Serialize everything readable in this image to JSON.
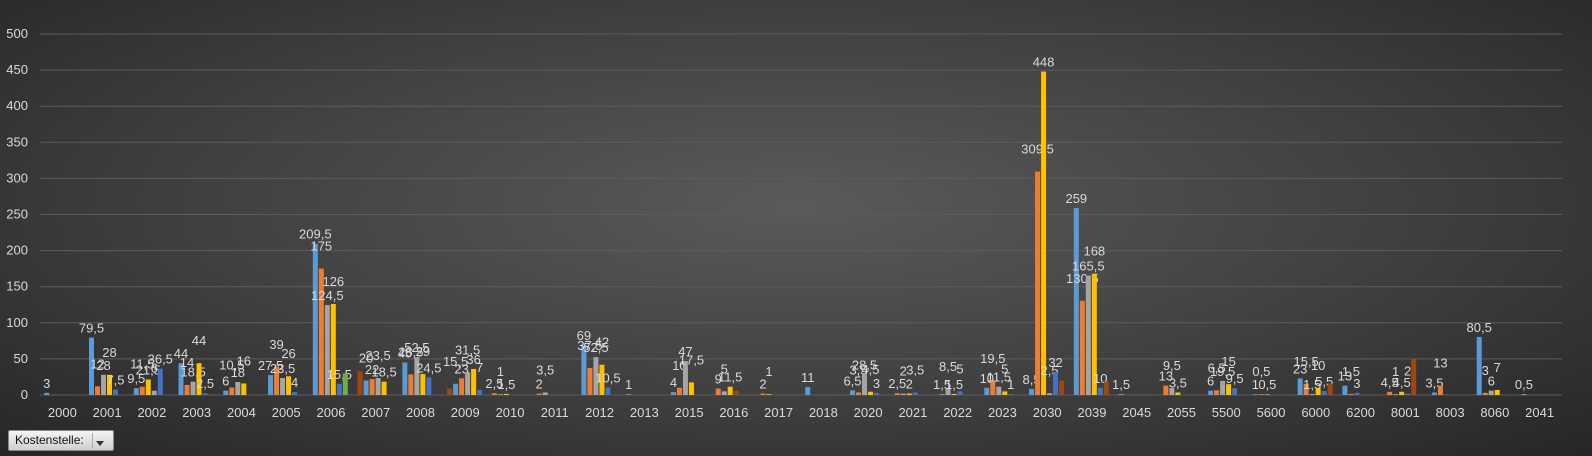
{
  "filter": {
    "label": "Kostenstelle:"
  },
  "chart_data": {
    "type": "bar",
    "ylim": [
      0,
      500
    ],
    "yticks": [
      0,
      50,
      100,
      150,
      200,
      250,
      300,
      350,
      400,
      450,
      500
    ],
    "grid": true,
    "colors": [
      "#5b9bd5",
      "#ed7d31",
      "#a5a5a5",
      "#ffc000",
      "#4472c4",
      "#70ad47",
      "#264478",
      "#9e480e"
    ],
    "categories": [
      {
        "label": "2000",
        "bars": [
          [
            0,
            3,
            "3"
          ]
        ]
      },
      {
        "label": "2001",
        "bars": [
          [
            0,
            79.5,
            "79,5"
          ],
          [
            1,
            12,
            "12"
          ],
          [
            2,
            28,
            "28"
          ],
          [
            3,
            28,
            "28"
          ],
          [
            4,
            7.5,
            "7,5"
          ]
        ]
      },
      {
        "label": "2002",
        "bars": [
          [
            0,
            9.5,
            "9,5"
          ],
          [
            1,
            11.5,
            "11,5"
          ],
          [
            3,
            21.5,
            "21,5"
          ],
          [
            2,
            6,
            "6"
          ],
          [
            4,
            36.5,
            "36,5"
          ]
        ]
      },
      {
        "label": "2003",
        "bars": [
          [
            0,
            44,
            "44"
          ],
          [
            1,
            14,
            "14"
          ],
          [
            2,
            18.5,
            "18,5"
          ],
          [
            3,
            44,
            "44"
          ],
          [
            4,
            2.5,
            "2,5"
          ],
          [
            7,
            0.5,
            ""
          ]
        ]
      },
      {
        "label": "2004",
        "bars": [
          [
            0,
            6,
            "6"
          ],
          [
            1,
            10.5,
            "10,5"
          ],
          [
            2,
            18,
            "18"
          ],
          [
            3,
            16,
            "16"
          ]
        ]
      },
      {
        "label": "2005",
        "bars": [
          [
            0,
            27.5,
            "27,5"
          ],
          [
            1,
            39,
            "39"
          ],
          [
            2,
            23.5,
            "23,5"
          ],
          [
            3,
            26,
            "26"
          ],
          [
            4,
            4,
            "4"
          ]
        ]
      },
      {
        "label": "2006",
        "bars": [
          [
            0,
            209.5,
            "209,5"
          ],
          [
            1,
            175,
            "175"
          ],
          [
            2,
            124.5,
            "124,5"
          ],
          [
            3,
            126,
            "126"
          ],
          [
            4,
            15.5,
            "15,5"
          ],
          [
            5,
            30,
            ""
          ]
        ]
      },
      {
        "label": "2007",
        "bars": [
          [
            7,
            33,
            ""
          ],
          [
            0,
            20,
            "20"
          ],
          [
            1,
            22,
            "22"
          ],
          [
            2,
            23.5,
            "23,5"
          ],
          [
            3,
            18.5,
            "18,5"
          ]
        ]
      },
      {
        "label": "2008",
        "bars": [
          [
            0,
            45,
            "45"
          ],
          [
            1,
            28.5,
            "28,5"
          ],
          [
            2,
            52.5,
            "52,5"
          ],
          [
            3,
            29,
            "29"
          ],
          [
            4,
            24.5,
            "24,5"
          ]
        ]
      },
      {
        "label": "2009",
        "bars": [
          [
            7,
            9,
            ""
          ],
          [
            0,
            15.5,
            "15,5"
          ],
          [
            1,
            23,
            "23"
          ],
          [
            2,
            31.5,
            "31,5"
          ],
          [
            3,
            36,
            "36"
          ],
          [
            4,
            7,
            "7"
          ]
        ]
      },
      {
        "label": "2010",
        "bars": [
          [
            1,
            2.5,
            "2,5"
          ],
          [
            2,
            1,
            "1"
          ],
          [
            3,
            1.5,
            "1,5"
          ]
        ]
      },
      {
        "label": "2011",
        "bars": [
          [
            1,
            2,
            "2"
          ],
          [
            2,
            3.5,
            "3,5"
          ]
        ]
      },
      {
        "label": "2012",
        "bars": [
          [
            0,
            69,
            "69"
          ],
          [
            1,
            37.5,
            "37,5"
          ],
          [
            2,
            52.5,
            "52,5"
          ],
          [
            3,
            42,
            "42"
          ],
          [
            4,
            10.5,
            "10,5"
          ]
        ]
      },
      {
        "label": "2013",
        "bars": [
          [
            1,
            1,
            "1"
          ]
        ]
      },
      {
        "label": "2015",
        "bars": [
          [
            0,
            4,
            "4"
          ],
          [
            1,
            10,
            "10"
          ],
          [
            2,
            47,
            "47"
          ],
          [
            3,
            17.5,
            "17,5"
          ]
        ]
      },
      {
        "label": "2016",
        "bars": [
          [
            1,
            9,
            "9"
          ],
          [
            2,
            5,
            "5"
          ],
          [
            3,
            11.5,
            "11,5"
          ],
          [
            7,
            6,
            ""
          ]
        ]
      },
      {
        "label": "2017",
        "bars": [
          [
            1,
            2,
            "2"
          ],
          [
            3,
            1,
            "1"
          ]
        ]
      },
      {
        "label": "2018",
        "bars": [
          [
            0,
            11,
            "11"
          ]
        ]
      },
      {
        "label": "2020",
        "bars": [
          [
            0,
            6.5,
            "6,5"
          ],
          [
            1,
            3.5,
            "3,5"
          ],
          [
            2,
            28.5,
            "28,5"
          ],
          [
            3,
            4.5,
            "4,5"
          ],
          [
            4,
            3,
            "3"
          ]
        ]
      },
      {
        "label": "2021",
        "bars": [
          [
            1,
            2.5,
            "2,5"
          ],
          [
            2,
            2,
            "2"
          ],
          [
            3,
            2,
            "2"
          ],
          [
            4,
            3.5,
            "3,5"
          ]
        ]
      },
      {
        "label": "2022",
        "bars": [
          [
            0,
            1.5,
            "1,5"
          ],
          [
            2,
            8.5,
            "8,5"
          ],
          [
            3,
            1.5,
            "1,5"
          ],
          [
            4,
            5,
            "5"
          ]
        ]
      },
      {
        "label": "2023",
        "bars": [
          [
            0,
            10,
            "10"
          ],
          [
            1,
            19.5,
            "19,5"
          ],
          [
            2,
            11.5,
            "11,5"
          ],
          [
            3,
            5,
            "5"
          ],
          [
            4,
            1,
            "1"
          ]
        ]
      },
      {
        "label": "2030",
        "bars": [
          [
            0,
            8.5,
            "8,5"
          ],
          [
            1,
            309.5,
            "309,5"
          ],
          [
            3,
            448,
            "448"
          ],
          [
            2,
            2.5,
            "2,5"
          ],
          [
            4,
            32,
            "32"
          ],
          [
            7,
            20,
            ""
          ]
        ]
      },
      {
        "label": "2039",
        "bars": [
          [
            0,
            259,
            "259"
          ],
          [
            1,
            130.5,
            "130,5"
          ],
          [
            2,
            165.5,
            "165,5"
          ],
          [
            3,
            168,
            "168"
          ],
          [
            4,
            10,
            "10"
          ],
          [
            7,
            18,
            ""
          ]
        ]
      },
      {
        "label": "2045",
        "bars": [
          [
            0,
            1.5,
            "1,5"
          ]
        ]
      },
      {
        "label": "2055",
        "bars": [
          [
            1,
            13,
            "13"
          ],
          [
            2,
            9.5,
            "9,5"
          ],
          [
            3,
            3.5,
            "3,5"
          ]
        ]
      },
      {
        "label": "5500",
        "bars": [
          [
            0,
            6,
            "6"
          ],
          [
            1,
            6.5,
            "6,5"
          ],
          [
            2,
            19.5,
            "19,5"
          ],
          [
            3,
            15,
            "15"
          ],
          [
            4,
            9.5,
            "9,5"
          ]
        ]
      },
      {
        "label": "5600",
        "bars": [
          [
            0,
            1,
            "1"
          ],
          [
            1,
            0.5,
            "0,5"
          ],
          [
            2,
            0.5,
            "0,5"
          ]
        ]
      },
      {
        "label": "6000",
        "bars": [
          [
            0,
            23,
            "23"
          ],
          [
            1,
            15.5,
            "15,5"
          ],
          [
            2,
            1.5,
            "1,5"
          ],
          [
            3,
            10,
            "10"
          ],
          [
            4,
            5.5,
            "5,5"
          ],
          [
            7,
            16,
            ""
          ]
        ]
      },
      {
        "label": "6200",
        "bars": [
          [
            0,
            13,
            "13"
          ],
          [
            1,
            1.5,
            "1,5"
          ],
          [
            4,
            3,
            "3"
          ]
        ]
      },
      {
        "label": "8001",
        "bars": [
          [
            1,
            4.5,
            "4,5"
          ],
          [
            2,
            1,
            "1"
          ],
          [
            3,
            4.5,
            "4,5"
          ],
          [
            4,
            2,
            "2"
          ],
          [
            7,
            50,
            ""
          ]
        ]
      },
      {
        "label": "8003",
        "bars": [
          [
            0,
            3.5,
            "3,5"
          ],
          [
            1,
            13,
            "13"
          ]
        ]
      },
      {
        "label": "8060",
        "bars": [
          [
            0,
            80.5,
            "80,5"
          ],
          [
            1,
            3,
            "3"
          ],
          [
            2,
            6,
            "6"
          ],
          [
            3,
            7,
            "7"
          ]
        ]
      },
      {
        "label": "2041",
        "bars": [
          [
            2,
            0.5,
            "0,5"
          ]
        ]
      }
    ]
  }
}
